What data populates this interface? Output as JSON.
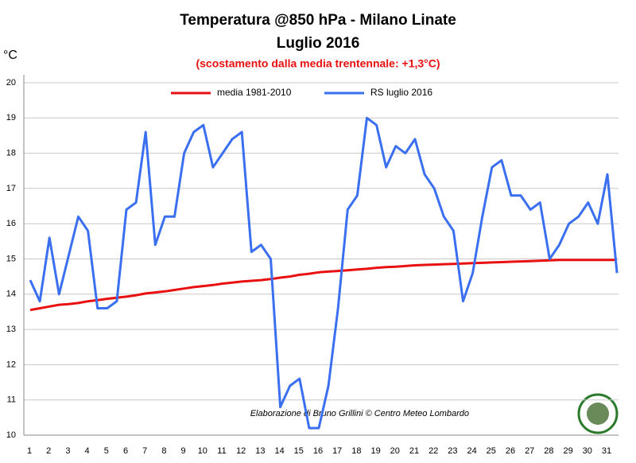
{
  "chart_data": {
    "type": "line",
    "title": "Temperatura @850 hPa - Milano Linate",
    "subtitle": "Luglio 2016",
    "annotation": "(scostamento dalla media trentennale: +1,3°C)",
    "credit": "Elaborazione di Bruno Grillini © Centro Meteo Lombardo",
    "y_label": "°C",
    "categories": [
      "1",
      null,
      "2",
      null,
      "3",
      null,
      "4",
      null,
      "5",
      null,
      "6",
      null,
      "7",
      null,
      "8",
      null,
      "9",
      null,
      "10",
      null,
      "11",
      null,
      "12",
      null,
      "13",
      null,
      "14",
      null,
      "15",
      null,
      "16",
      null,
      "17",
      null,
      "18",
      null,
      "19",
      null,
      "20",
      null,
      "21",
      null,
      "22",
      null,
      "23",
      null,
      "24",
      null,
      "25",
      null,
      "26",
      null,
      "27",
      null,
      "28",
      null,
      "29",
      null,
      "30",
      null,
      "31",
      null
    ],
    "series": [
      {
        "name": "media 1981-2010",
        "color": "#e81010",
        "values": [
          13.55,
          13.6,
          13.65,
          13.7,
          13.72,
          13.75,
          13.8,
          13.83,
          13.87,
          13.9,
          13.93,
          13.97,
          14.02,
          14.05,
          14.08,
          14.12,
          14.16,
          14.2,
          14.23,
          14.26,
          14.3,
          14.33,
          14.36,
          14.38,
          14.4,
          14.43,
          14.47,
          14.5,
          14.55,
          14.58,
          14.62,
          14.64,
          14.66,
          14.68,
          14.7,
          14.72,
          14.75,
          14.77,
          14.78,
          14.8,
          14.82,
          14.83,
          14.84,
          14.85,
          14.86,
          14.87,
          14.88,
          14.89,
          14.9,
          14.91,
          14.92,
          14.93,
          14.94,
          14.95,
          14.96,
          14.97,
          14.97,
          14.97,
          14.97,
          14.97,
          14.97,
          14.97
        ]
      },
      {
        "name": "RS luglio 2016",
        "color": "#3a6ff0",
        "values": [
          14.4,
          13.8,
          15.6,
          14.0,
          15.1,
          16.2,
          15.8,
          13.6,
          13.6,
          13.8,
          16.4,
          16.6,
          18.6,
          15.4,
          16.2,
          16.2,
          18.0,
          18.6,
          18.8,
          17.6,
          18.0,
          18.4,
          18.6,
          15.2,
          15.4,
          15.0,
          10.8,
          11.4,
          11.6,
          10.2,
          10.2,
          11.4,
          13.6,
          16.4,
          16.8,
          19.0,
          18.8,
          17.6,
          18.2,
          18.0,
          18.4,
          17.4,
          17.0,
          16.2,
          15.8,
          13.8,
          14.6,
          16.2,
          17.6,
          17.8,
          16.8,
          16.8,
          16.4,
          16.6,
          15.0,
          15.4,
          16.0,
          16.2,
          16.6,
          16.0,
          17.4,
          14.6
        ]
      }
    ],
    "ylim": [
      10,
      20
    ],
    "yticks": [
      10,
      11,
      12,
      13,
      14,
      15,
      16,
      17,
      18,
      19,
      20
    ],
    "grid": true
  }
}
